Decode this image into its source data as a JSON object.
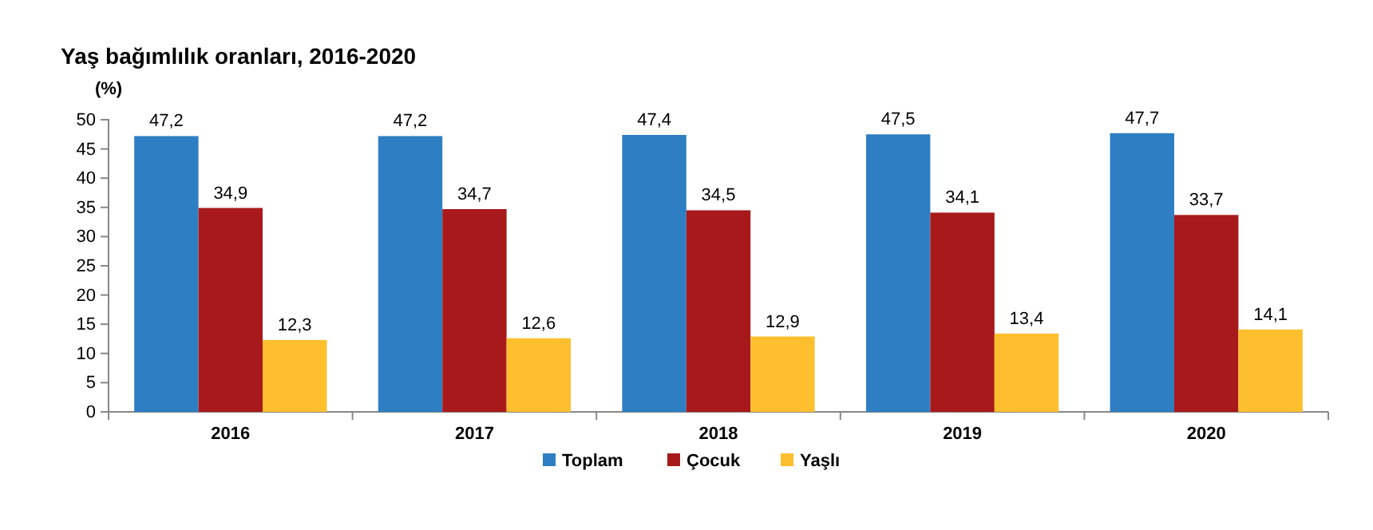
{
  "chart_data": {
    "type": "bar",
    "title": "Yaş bağımlılık oranları, 2016-2020",
    "ylabel": "(%)",
    "categories": [
      "2016",
      "2017",
      "2018",
      "2019",
      "2020"
    ],
    "series": [
      {
        "name": "Toplam",
        "color": "#2e7ec4",
        "values": [
          47.2,
          47.2,
          47.4,
          47.5,
          47.7
        ],
        "value_labels": [
          "47,2",
          "47,2",
          "47,4",
          "47,5",
          "47,7"
        ]
      },
      {
        "name": "Çocuk",
        "color": "#a8191b",
        "values": [
          34.9,
          34.7,
          34.5,
          34.1,
          33.7
        ],
        "value_labels": [
          "34,9",
          "34,7",
          "34,5",
          "34,1",
          "33,7"
        ]
      },
      {
        "name": "Yaşlı",
        "color": "#fdbf2d",
        "values": [
          12.3,
          12.6,
          12.9,
          13.4,
          14.1
        ],
        "value_labels": [
          "12,3",
          "12,6",
          "12,9",
          "13,4",
          "14,1"
        ]
      }
    ],
    "ylim": [
      0,
      50
    ],
    "yticks": [
      0,
      5,
      10,
      15,
      20,
      25,
      30,
      35,
      40,
      45,
      50
    ],
    "grid": false,
    "legend": "bottom"
  }
}
